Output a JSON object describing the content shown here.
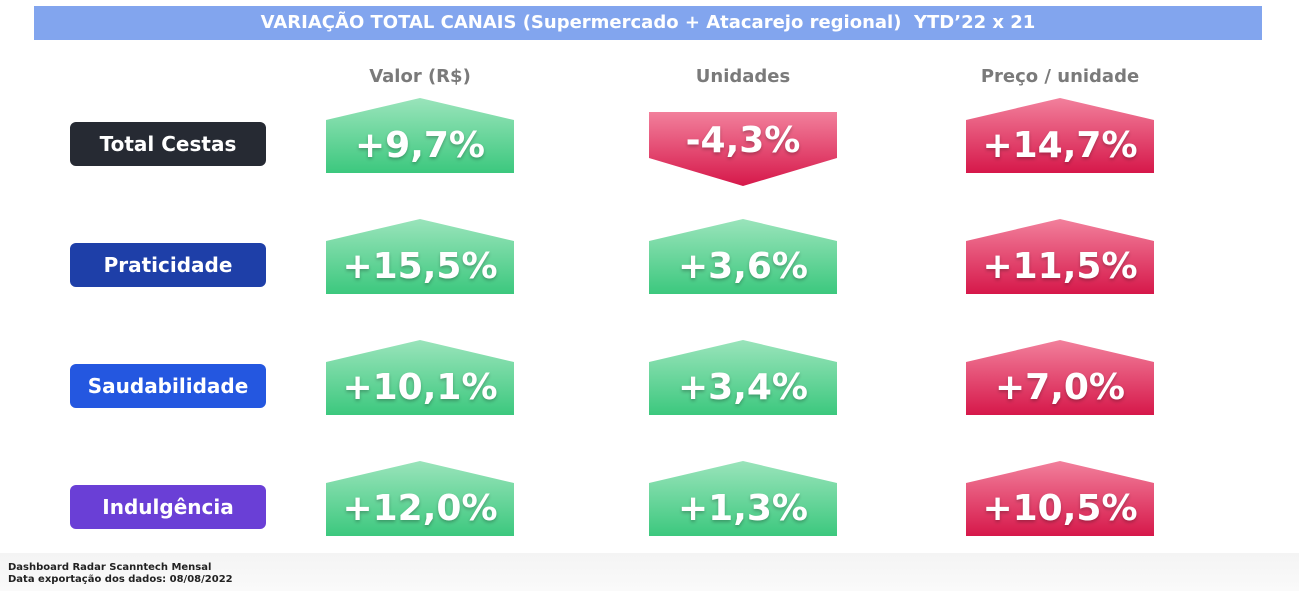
{
  "title": "VARIAÇÃO TOTAL CANAIS (Supermercado + Atacarejo regional)  YTD’22 x 21",
  "columns": [
    "Valor (R$)",
    "Unidades",
    "Preço / unidade"
  ],
  "rows": [
    {
      "label": "Total Cestas",
      "values": [
        "+9,7%",
        "-4,3%",
        "+14,7%"
      ]
    },
    {
      "label": "Praticidade",
      "values": [
        "+15,5%",
        "+3,6%",
        "+11,5%"
      ]
    },
    {
      "label": "Saudabilidade",
      "values": [
        "+10,1%",
        "+3,4%",
        "+7,0%"
      ]
    },
    {
      "label": "Indulgência",
      "values": [
        "+12,0%",
        "+1,3%",
        "+10,5%"
      ]
    }
  ],
  "footer": [
    "Dashboard Radar Scanntech Mensal",
    "Data exportação dos dados: 08/08/2022"
  ]
}
